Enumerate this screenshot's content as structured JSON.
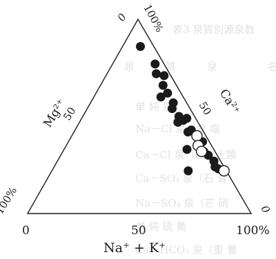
{
  "chart_data": {
    "type": "ternary-scatter",
    "title": "",
    "components": {
      "top": "Ca²⁺ (0 → 100%)",
      "left": "Mg²⁺",
      "right": "Na⁺ + K⁺"
    },
    "labels": {
      "right_edge_axis": "Ca²⁺",
      "right_edge_50": "50",
      "left_edge_axis": "Mg²⁺",
      "left_edge_50": "50",
      "bottom_axis": "Na⁺ + K⁺",
      "bottom_0": "0",
      "bottom_50": "50",
      "bottom_100": "100%",
      "apex_top_0": "0",
      "apex_top_100": "100%",
      "apex_left_100": "100%",
      "apex_right_0": "0"
    },
    "units": "%",
    "series": [
      {
        "marker": "filled",
        "points": [
          {
            "naK": 8,
            "mg": 6
          },
          {
            "naK": 19,
            "mg": 4
          },
          {
            "naK": 22,
            "mg": 6
          },
          {
            "naK": 26,
            "mg": 3
          },
          {
            "naK": 28,
            "mg": 6
          },
          {
            "naK": 30,
            "mg": 10
          },
          {
            "naK": 32,
            "mg": 6
          },
          {
            "naK": 37,
            "mg": 6
          },
          {
            "naK": 38,
            "mg": 8
          },
          {
            "naK": 43,
            "mg": 7
          },
          {
            "naK": 44,
            "mg": 9
          },
          {
            "naK": 46,
            "mg": 6
          },
          {
            "naK": 47,
            "mg": 4
          },
          {
            "naK": 51,
            "mg": 7
          },
          {
            "naK": 52,
            "mg": 5
          },
          {
            "naK": 55,
            "mg": 12
          },
          {
            "naK": 60,
            "mg": 3
          },
          {
            "naK": 61,
            "mg": 17
          },
          {
            "naK": 63,
            "mg": 5
          },
          {
            "naK": 66,
            "mg": 4
          },
          {
            "naK": 70,
            "mg": 3
          },
          {
            "naK": 72,
            "mg": 4
          },
          {
            "naK": 74,
            "mg": 3
          }
        ]
      },
      {
        "marker": "open",
        "points": [
          {
            "naK": 56,
            "mg": 4
          },
          {
            "naK": 59,
            "mg": 6
          },
          {
            "naK": 62,
            "mg": 6
          },
          {
            "naK": 77,
            "mg": 1
          }
        ]
      }
    ]
  },
  "background_text": {
    "heading": "表3  泉質別源泉数",
    "col1": "名",
    "col2": "泉",
    "col3": "質",
    "col4": "泉",
    "rows": [
      "単  純  泉",
      "Na－Cl 泉（食  塩",
      "Ca－Cl 泉（塩化土類",
      "Ca－SO₄ 泉（石  膏",
      "Na－SO₄ 泉（芒  硝",
      "単  純  硫  黄",
      "Ca－HCO₃ 泉（重  曹"
    ]
  }
}
